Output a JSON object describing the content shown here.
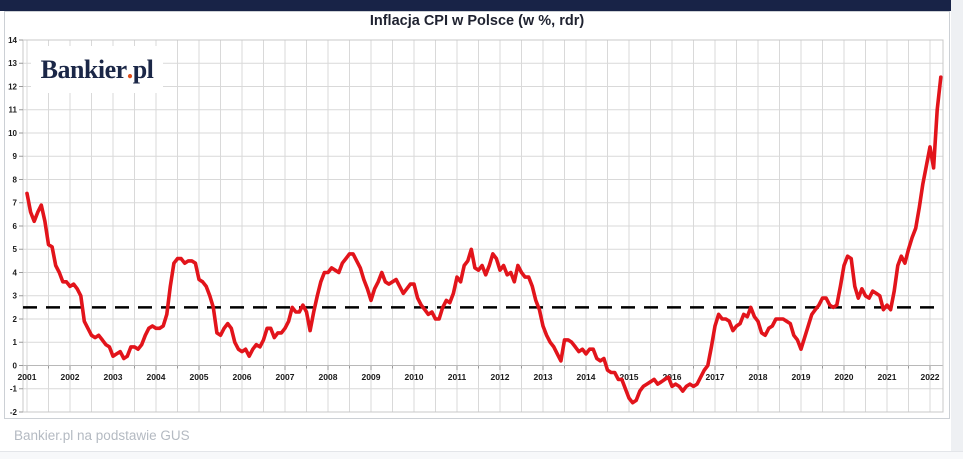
{
  "logo": {
    "main": "Bankier",
    "dot": ".",
    "suffix": "pl"
  },
  "footer": {
    "source_text": "Bankier.pl na podstawie GUS"
  },
  "colors": {
    "topbar": "#182347",
    "line": "#e2141b",
    "reference": "#000000",
    "grid": "#d9d9d9",
    "zero_axis": "#b8b8b8",
    "frame": "#c8c8c8",
    "tick": "#9a9a9a",
    "axis_text": "#1a1a1a",
    "logo_navy": "#1b2747",
    "logo_dot": "#e04e1a",
    "caption_text": "#b4bac2",
    "right_strip": "#eef0f3"
  },
  "chart_data": {
    "type": "line",
    "title": "Inflacja CPI w Polsce (w %, rdr)",
    "x_axis": {
      "tick_labels": [
        "2001",
        "2002",
        "2003",
        "2004",
        "2005",
        "2006",
        "2007",
        "2008",
        "2009",
        "2010",
        "2011",
        "2012",
        "2013",
        "2014",
        "2015",
        "2016",
        "2017",
        "2018",
        "2019",
        "2020",
        "2021",
        "2022"
      ],
      "start": "2001-01",
      "frequency": "monthly"
    },
    "y_axis": {
      "min": -2,
      "max": 14,
      "step": 1
    },
    "grid": {
      "visible": true,
      "horizontal_step": 1,
      "vertical_step_years": 0.5
    },
    "legend": "none",
    "reference_line": {
      "value": 2.5,
      "style": "dashed",
      "color": "#000000"
    },
    "series": [
      {
        "name": "Inflacja CPI rdr (%)",
        "color": "#e2141b",
        "values": [
          7.4,
          6.6,
          6.2,
          6.6,
          6.9,
          6.2,
          5.2,
          5.1,
          4.3,
          4.0,
          3.6,
          3.6,
          3.4,
          3.5,
          3.3,
          3.0,
          1.9,
          1.6,
          1.3,
          1.2,
          1.3,
          1.1,
          0.9,
          0.8,
          0.4,
          0.5,
          0.6,
          0.3,
          0.4,
          0.8,
          0.8,
          0.7,
          0.9,
          1.3,
          1.6,
          1.7,
          1.6,
          1.6,
          1.7,
          2.2,
          3.4,
          4.4,
          4.6,
          4.6,
          4.4,
          4.5,
          4.5,
          4.4,
          3.7,
          3.6,
          3.4,
          3.0,
          2.5,
          1.4,
          1.3,
          1.6,
          1.8,
          1.6,
          1.0,
          0.7,
          0.6,
          0.7,
          0.4,
          0.7,
          0.9,
          0.8,
          1.1,
          1.6,
          1.6,
          1.2,
          1.4,
          1.4,
          1.6,
          1.9,
          2.5,
          2.3,
          2.3,
          2.6,
          2.3,
          1.5,
          2.3,
          3.0,
          3.6,
          4.0,
          4.0,
          4.2,
          4.1,
          4.0,
          4.4,
          4.6,
          4.8,
          4.8,
          4.5,
          4.2,
          3.7,
          3.3,
          2.8,
          3.3,
          3.6,
          4.0,
          3.6,
          3.5,
          3.6,
          3.7,
          3.4,
          3.1,
          3.3,
          3.5,
          3.5,
          2.9,
          2.6,
          2.4,
          2.2,
          2.3,
          2.0,
          2.0,
          2.5,
          2.8,
          2.7,
          3.1,
          3.8,
          3.6,
          4.3,
          4.5,
          5.0,
          4.2,
          4.1,
          4.3,
          3.9,
          4.3,
          4.8,
          4.6,
          4.1,
          4.3,
          3.9,
          4.0,
          3.6,
          4.3,
          4.0,
          3.8,
          3.8,
          3.4,
          2.8,
          2.4,
          1.7,
          1.3,
          1.0,
          0.8,
          0.5,
          0.2,
          1.1,
          1.1,
          1.0,
          0.8,
          0.6,
          0.7,
          0.5,
          0.7,
          0.7,
          0.3,
          0.2,
          0.3,
          -0.2,
          -0.3,
          -0.3,
          -0.6,
          -0.6,
          -1.0,
          -1.4,
          -1.6,
          -1.5,
          -1.1,
          -0.9,
          -0.8,
          -0.7,
          -0.6,
          -0.8,
          -0.7,
          -0.6,
          -0.5,
          -0.9,
          -0.8,
          -0.9,
          -1.1,
          -0.9,
          -0.8,
          -0.9,
          -0.8,
          -0.5,
          -0.2,
          0.0,
          0.8,
          1.7,
          2.2,
          2.0,
          2.0,
          1.9,
          1.5,
          1.7,
          1.8,
          2.2,
          2.1,
          2.5,
          2.1,
          1.9,
          1.4,
          1.3,
          1.6,
          1.7,
          2.0,
          2.0,
          2.0,
          1.9,
          1.8,
          1.3,
          1.1,
          0.7,
          1.2,
          1.7,
          2.2,
          2.4,
          2.6,
          2.9,
          2.9,
          2.6,
          2.5,
          2.6,
          3.4,
          4.3,
          4.7,
          4.6,
          3.4,
          2.9,
          3.3,
          3.0,
          2.9,
          3.2,
          3.1,
          3.0,
          2.4,
          2.6,
          2.4,
          3.2,
          4.3,
          4.7,
          4.4,
          5.0,
          5.5,
          5.9,
          6.8,
          7.8,
          8.6,
          9.4,
          8.5,
          11.0,
          12.4
        ]
      }
    ]
  }
}
